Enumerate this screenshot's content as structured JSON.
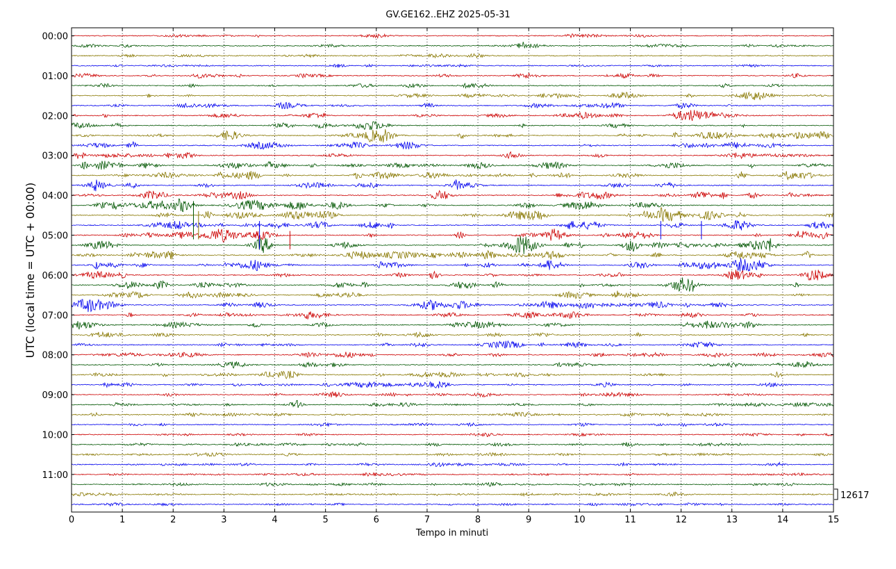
{
  "chart_data": {
    "type": "line",
    "title": "GV.GE162..EHZ 2025-05-31",
    "xlabel": "Tempo in minuti",
    "ylabel": "UTC (local time = UTC + 00:00)",
    "xlim": [
      0,
      15
    ],
    "x_ticks": [
      "0",
      "1",
      "2",
      "3",
      "4",
      "5",
      "6",
      "7",
      "8",
      "9",
      "10",
      "11",
      "12",
      "13",
      "14",
      "15"
    ],
    "y_tick_labels": [
      "00:00",
      "01:00",
      "02:00",
      "03:00",
      "04:00",
      "05:00",
      "06:00",
      "07:00",
      "08:00",
      "09:00",
      "10:00",
      "11:00"
    ],
    "rows_per_hour": 4,
    "trace_count": 48,
    "series_colors": [
      "#cc0000",
      "#005500",
      "#887700",
      "#0000ee"
    ],
    "grid": "vertical dotted lines at each minute",
    "scale_annotation": "12617"
  }
}
